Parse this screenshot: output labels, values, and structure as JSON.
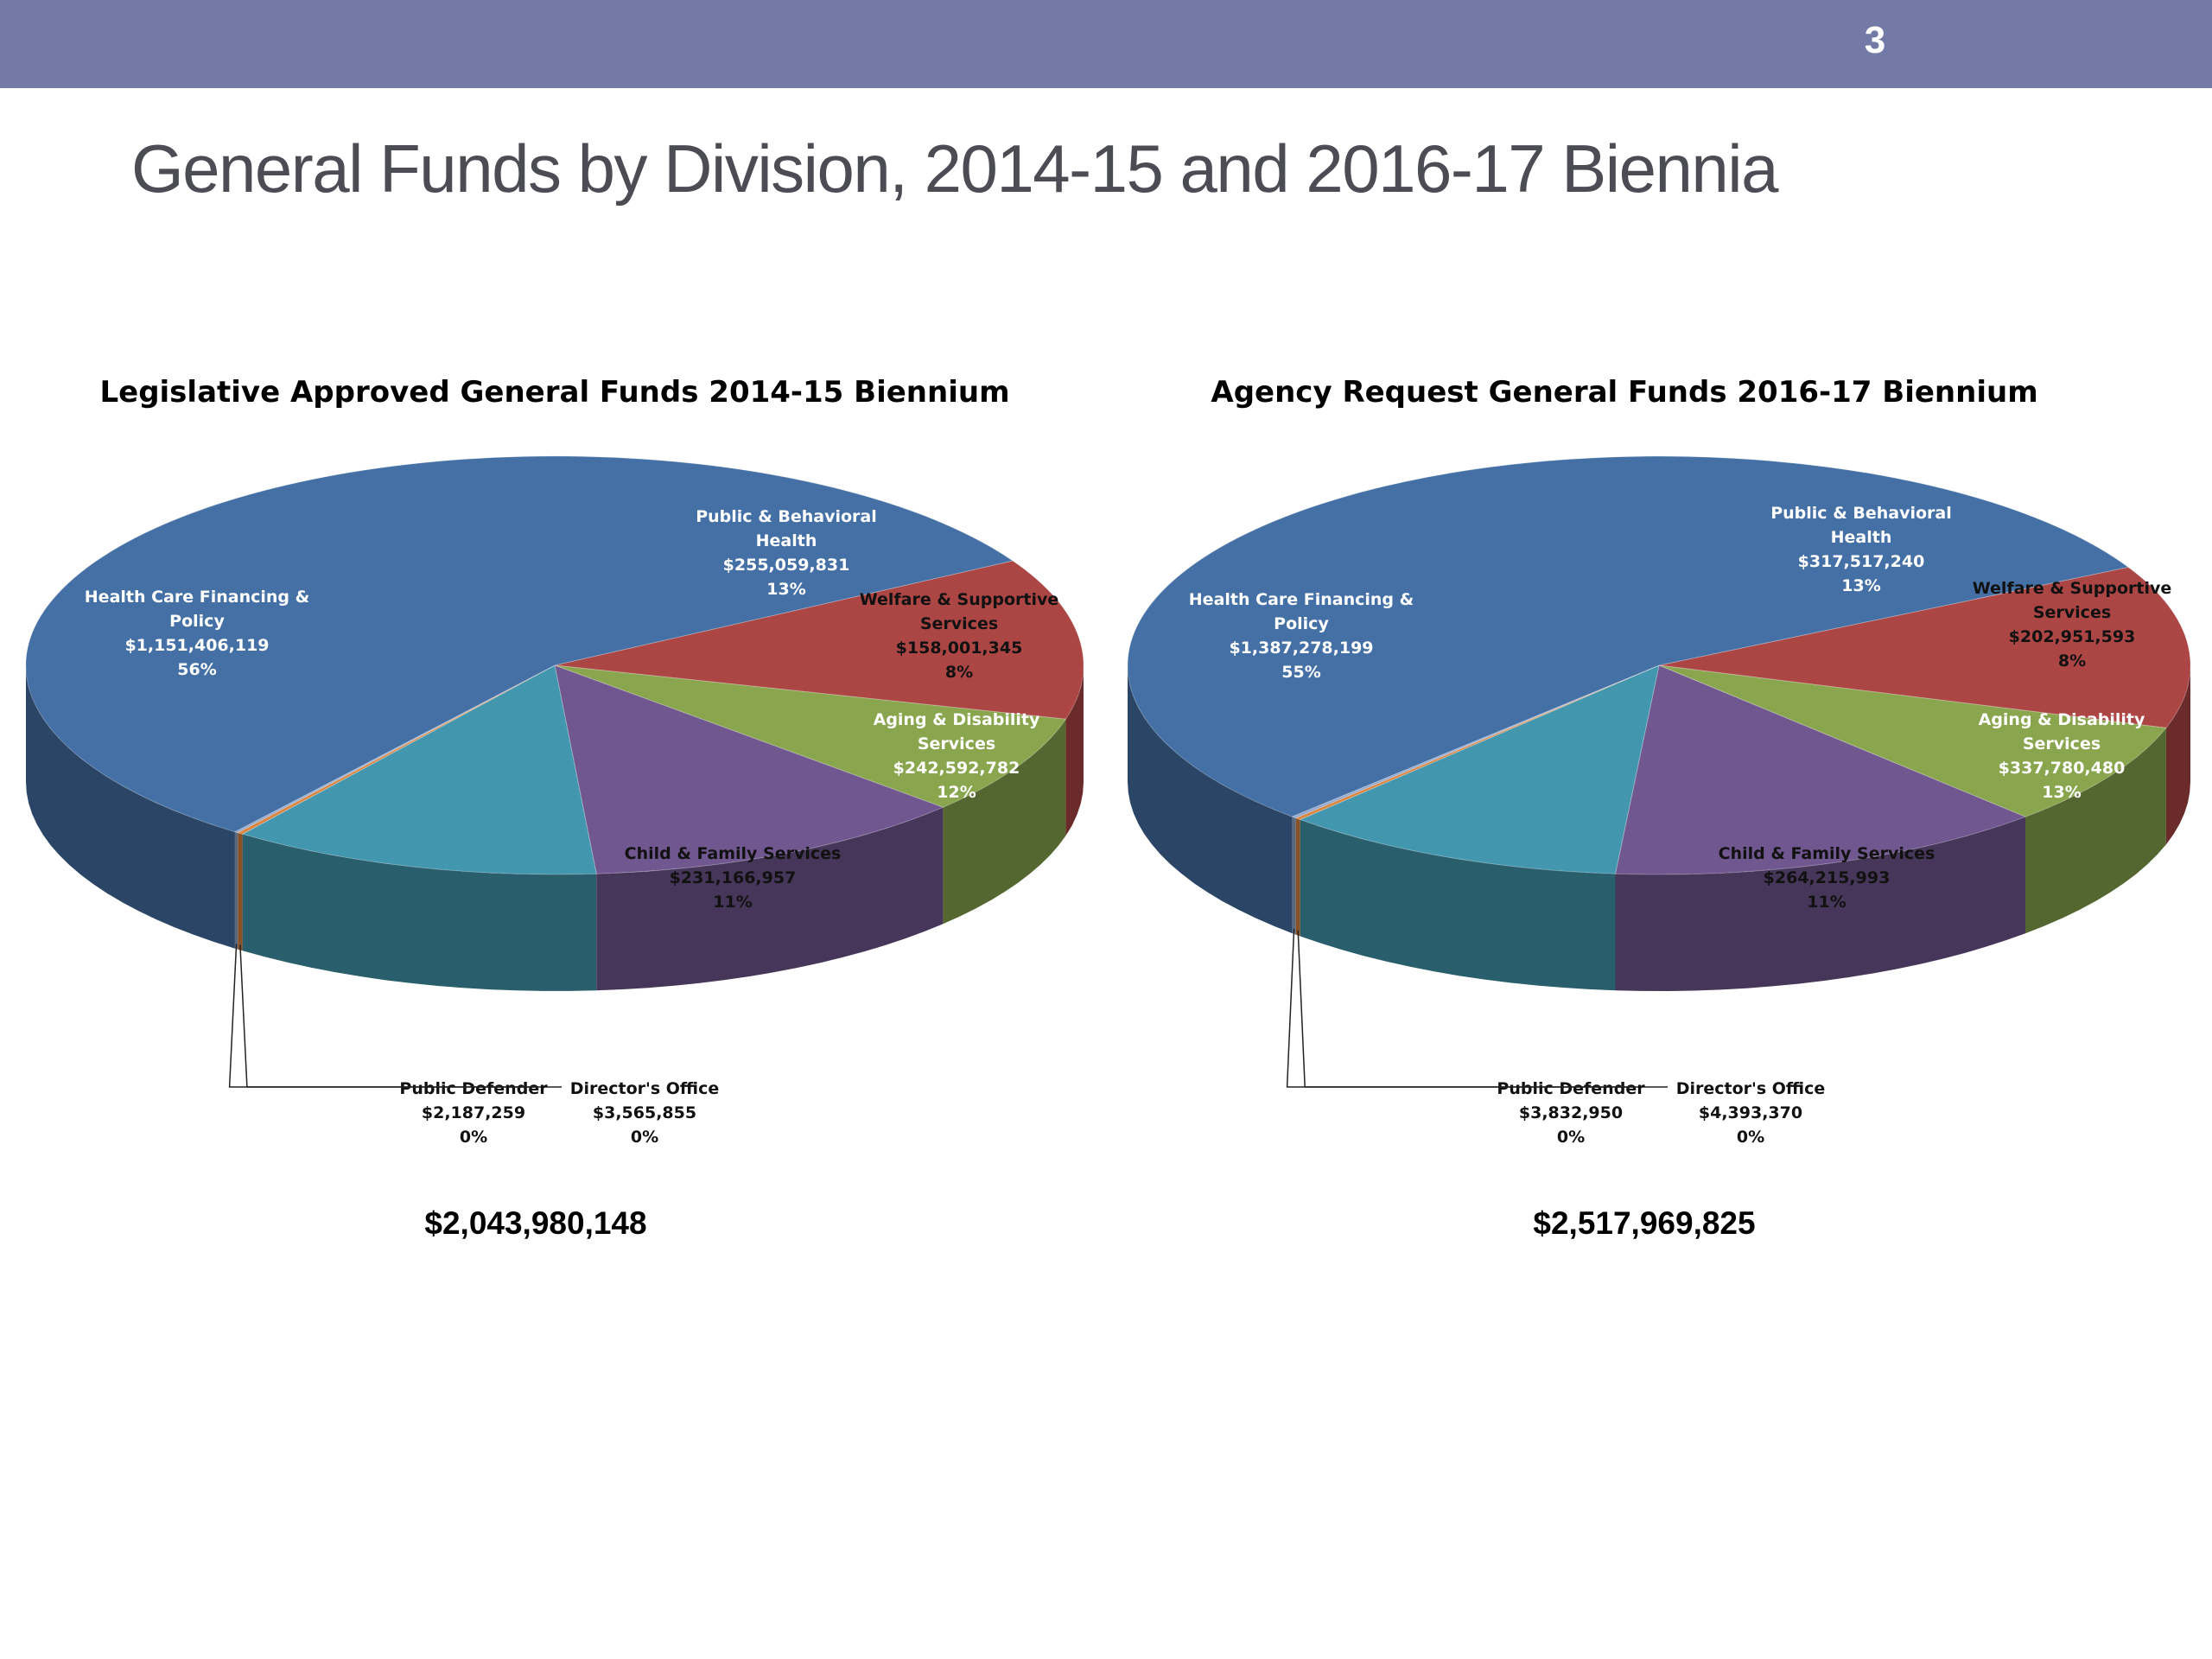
{
  "slide": {
    "number": "3",
    "title": "General Funds by Division, 2014-15 and 2016-17 Biennia",
    "header_color": "#727aa5"
  },
  "chart_data": [
    {
      "type": "pie",
      "title": "Legislative Approved General Funds 2014-15 Biennium",
      "total": "$2,043,980,148",
      "slices": [
        {
          "name": "Public & Behavioral Health",
          "value": 255059831,
          "label": "$255,059,831",
          "percent": "13%",
          "color": "#ab4644"
        },
        {
          "name": "Welfare & Supportive Services",
          "value": 158001345,
          "label": "$158,001,345",
          "percent": "8%",
          "color": "#89a64e"
        },
        {
          "name": "Aging & Disability Services",
          "value": 242592782,
          "label": "$242,592,782",
          "percent": "12%",
          "color": "#71578f"
        },
        {
          "name": "Child & Family Services",
          "value": 231166957,
          "label": "$231,166,957",
          "percent": "11%",
          "color": "#4297ae"
        },
        {
          "name": "Director's Office",
          "value": 3565855,
          "label": "$3,565,855",
          "percent": "0%",
          "color": "#db843d"
        },
        {
          "name": "Public Defender",
          "value": 2187259,
          "label": "$2,187,259",
          "percent": "0%",
          "color": "#93a9cf"
        },
        {
          "name": "Health Care Financing & Policy",
          "value": 1151406119,
          "label": "$1,151,406,119",
          "percent": "56%",
          "color": "#4470a5"
        }
      ]
    },
    {
      "type": "pie",
      "title": "Agency Request General Funds 2016-17 Biennium",
      "total": "$2,517,969,825",
      "slices": [
        {
          "name": "Public & Behavioral Health",
          "value": 317517240,
          "label": "$317,517,240",
          "percent": "13%",
          "color": "#ab4644"
        },
        {
          "name": "Welfare & Supportive Services",
          "value": 202951593,
          "label": "$202,951,593",
          "percent": "8%",
          "color": "#89a64e"
        },
        {
          "name": "Aging & Disability Services",
          "value": 337780480,
          "label": "$337,780,480",
          "percent": "13%",
          "color": "#71578f"
        },
        {
          "name": "Child & Family Services",
          "value": 264215993,
          "label": "$264,215,993",
          "percent": "11%",
          "color": "#4297ae"
        },
        {
          "name": "Director's Office",
          "value": 4393370,
          "label": "$4,393,370",
          "percent": "0%",
          "color": "#db843d"
        },
        {
          "name": "Public Defender",
          "value": 3832950,
          "label": "$3,832,950",
          "percent": "0%",
          "color": "#93a9cf"
        },
        {
          "name": "Health Care Financing & Policy",
          "value": 1387278199,
          "label": "$1,387,278,199",
          "percent": "55%",
          "color": "#4470a5"
        }
      ]
    }
  ]
}
